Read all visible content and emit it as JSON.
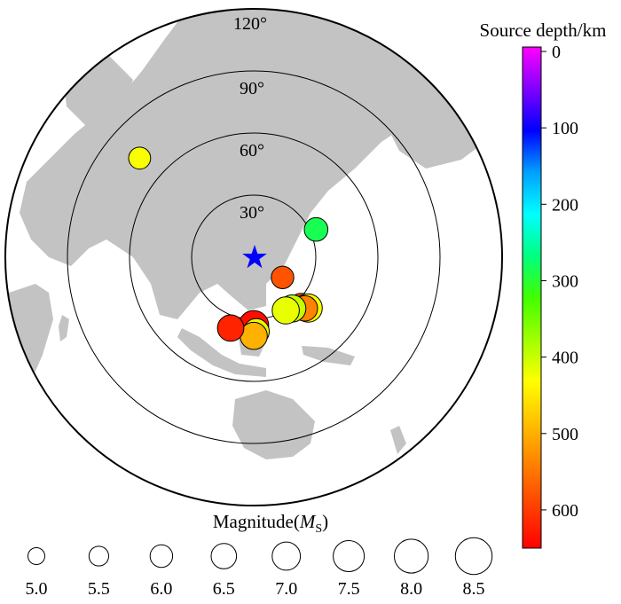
{
  "chart_data": {
    "type": "scatter",
    "projection": "azimuthal equidistant centred on the station",
    "station_marker": "star",
    "range_rings": {
      "labels": [
        "30°",
        "60°",
        "90°",
        "120°"
      ],
      "values_deg": [
        30,
        60,
        90,
        120
      ]
    },
    "colorbar": {
      "title": "Source depth/km",
      "range": [
        0,
        650
      ],
      "ticks": [
        0,
        100,
        200,
        300,
        400,
        500,
        600
      ],
      "tick_labels": [
        "0",
        "100",
        "200",
        "300",
        "400",
        "500",
        "600"
      ],
      "colormap": [
        "#ff00ff",
        "#8000ff",
        "#0000ff",
        "#00a0ff",
        "#00ffff",
        "#00ff80",
        "#40ff00",
        "#a0ff00",
        "#ffff00",
        "#ffc000",
        "#ff8000",
        "#ff4000",
        "#ff0000"
      ]
    },
    "size_legend": {
      "title": "Magnitude(",
      "title_italic": "M",
      "title_sub": "S",
      "title_close": ")",
      "magnitudes": [
        5.0,
        5.5,
        6.0,
        6.5,
        7.0,
        7.5,
        8.0,
        8.5
      ],
      "labels": [
        "5.0",
        "5.5",
        "6.0",
        "6.5",
        "7.0",
        "7.5",
        "8.0",
        "8.5"
      ]
    },
    "events": [
      {
        "distance_deg": 73,
        "azimuth_deg": 311,
        "depth_km": 430,
        "magnitude": 5.9
      },
      {
        "distance_deg": 17,
        "azimuth_deg": 125,
        "depth_km": 580,
        "magnitude": 6.0
      },
      {
        "distance_deg": 33,
        "azimuth_deg": 66,
        "depth_km": 290,
        "magnitude": 6.2
      },
      {
        "distance_deg": 33,
        "azimuth_deg": 136,
        "depth_km": 580,
        "magnitude": 6.6
      },
      {
        "distance_deg": 35,
        "azimuth_deg": 134,
        "depth_km": 620,
        "magnitude": 6.6
      },
      {
        "distance_deg": 36,
        "azimuth_deg": 133,
        "depth_km": 430,
        "magnitude": 7.0
      },
      {
        "distance_deg": 35,
        "azimuth_deg": 135,
        "depth_km": 540,
        "magnitude": 6.5
      },
      {
        "distance_deg": 31,
        "azimuth_deg": 143,
        "depth_km": 400,
        "magnitude": 6.8
      },
      {
        "distance_deg": 30,
        "azimuth_deg": 149,
        "depth_km": 420,
        "magnitude": 6.8
      },
      {
        "distance_deg": 33,
        "azimuth_deg": 180,
        "depth_km": 640,
        "magnitude": 7.3
      },
      {
        "distance_deg": 36,
        "azimuth_deg": 178,
        "depth_km": 420,
        "magnitude": 6.6
      },
      {
        "distance_deg": 38,
        "azimuth_deg": 180,
        "depth_km": 500,
        "magnitude": 6.8
      },
      {
        "distance_deg": 36,
        "azimuth_deg": 198,
        "depth_km": 620,
        "magnitude": 6.7
      }
    ]
  }
}
